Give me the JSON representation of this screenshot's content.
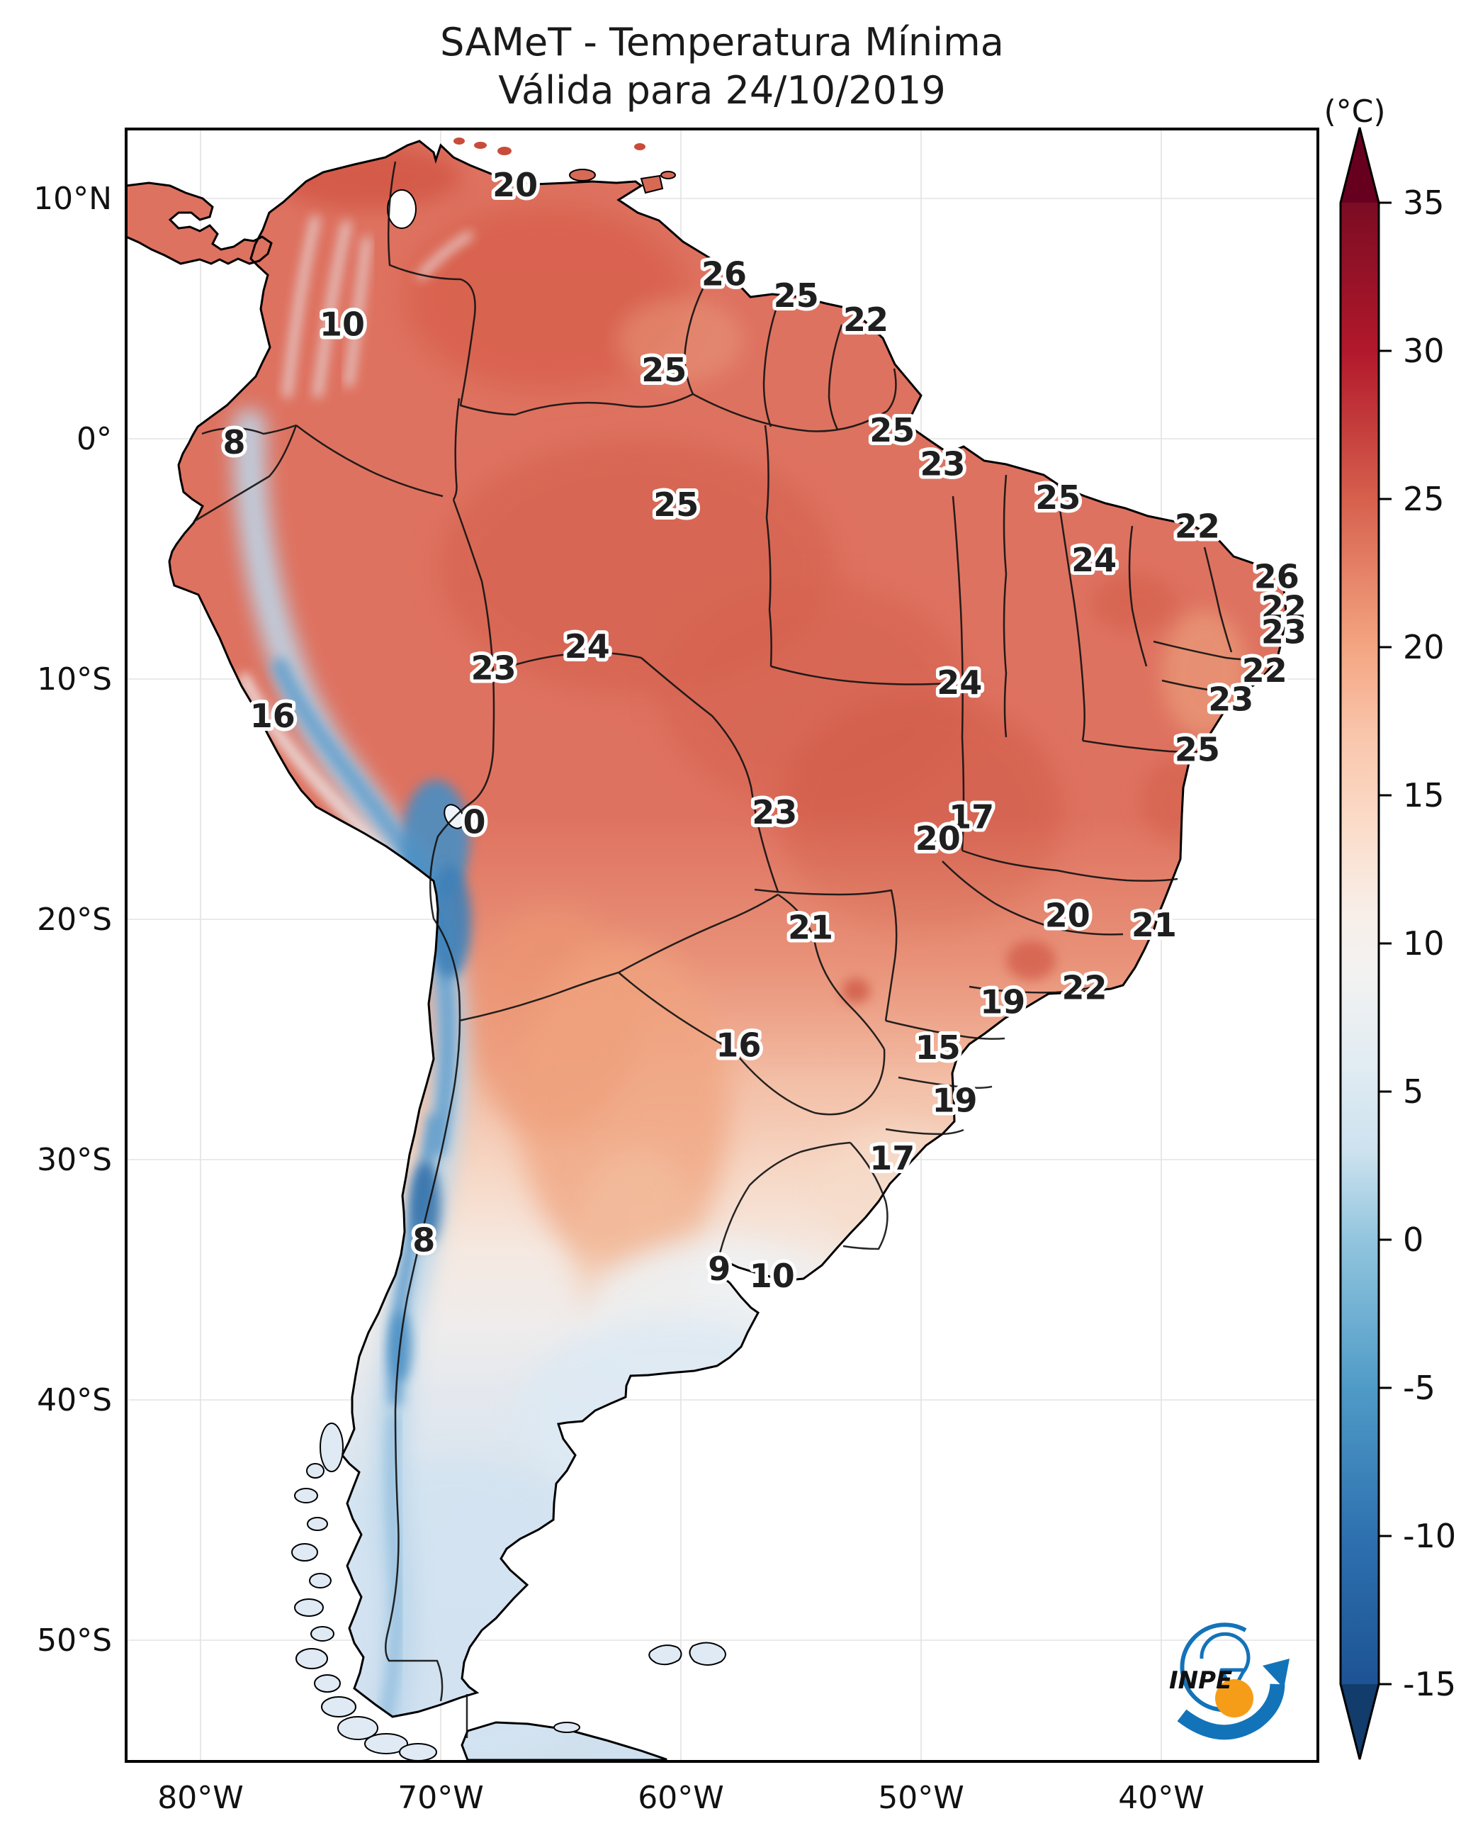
{
  "title": {
    "line1": "SAMeT - Temperatura Mínima",
    "line2": "Válida para 24/10/2019"
  },
  "colorbar": {
    "unit_label": "(°C)",
    "ticks": [
      35,
      30,
      25,
      20,
      15,
      10,
      5,
      0,
      -5,
      -10,
      -15
    ],
    "vmin": -15,
    "vmax": 35,
    "extend_above_color": "#67001f",
    "extend_below_color": "#113c6b"
  },
  "axes": {
    "lat_ticks": [
      {
        "label": "10°N",
        "value": 10
      },
      {
        "label": "0°",
        "value": 0
      },
      {
        "label": "10°S",
        "value": -10
      },
      {
        "label": "20°S",
        "value": -20
      },
      {
        "label": "30°S",
        "value": -30
      },
      {
        "label": "40°S",
        "value": -40
      },
      {
        "label": "50°S",
        "value": -50
      }
    ],
    "lon_ticks": [
      {
        "label": "80°W",
        "value": -80
      },
      {
        "label": "70°W",
        "value": -70
      },
      {
        "label": "60°W",
        "value": -60
      },
      {
        "label": "50°W",
        "value": -50
      },
      {
        "label": "40°W",
        "value": -40
      }
    ]
  },
  "logo": {
    "name": "INPE",
    "blue": "#1373b9",
    "orange": "#f59d18"
  },
  "chart_data": {
    "type": "heatmap",
    "title": "SAMeT - Temperatura Mínima",
    "subtitle": "Válida para 24/10/2019",
    "unit": "°C",
    "region": "South America",
    "lon_range": [
      -83.1,
      -33.5
    ],
    "lat_range": [
      -55.2,
      12.9
    ],
    "colorbar_range": [
      -15,
      35
    ],
    "colorbar_ticks": [
      35,
      30,
      25,
      20,
      15,
      10,
      5,
      0,
      -5,
      -10,
      -15
    ],
    "colormap": "red (warm) to blue (cold), RdBu reversed",
    "station_labels": [
      {
        "value": "20",
        "lon": -66.9,
        "lat": 10.5
      },
      {
        "value": "10",
        "lon": -74.1,
        "lat": 4.7
      },
      {
        "value": "8",
        "lon": -78.6,
        "lat": -0.2
      },
      {
        "value": "26",
        "lon": -58.2,
        "lat": 6.8
      },
      {
        "value": "25",
        "lon": -55.2,
        "lat": 5.9
      },
      {
        "value": "22",
        "lon": -52.3,
        "lat": 4.9
      },
      {
        "value": "25",
        "lon": -60.7,
        "lat": 2.8
      },
      {
        "value": "25",
        "lon": -51.2,
        "lat": 0.3
      },
      {
        "value": "23",
        "lon": -49.1,
        "lat": -1.1
      },
      {
        "value": "25",
        "lon": -44.3,
        "lat": -2.5
      },
      {
        "value": "22",
        "lon": -38.5,
        "lat": -3.7
      },
      {
        "value": "24",
        "lon": -42.8,
        "lat": -5.1
      },
      {
        "value": "26",
        "lon": -35.2,
        "lat": -5.8
      },
      {
        "value": "22",
        "lon": -34.9,
        "lat": -7.1
      },
      {
        "value": "23",
        "lon": -34.9,
        "lat": -8.1
      },
      {
        "value": "22",
        "lon": -35.7,
        "lat": -9.7
      },
      {
        "value": "23",
        "lon": -37.1,
        "lat": -10.9
      },
      {
        "value": "25",
        "lon": -38.5,
        "lat": -13.0
      },
      {
        "value": "25",
        "lon": -60.2,
        "lat": -2.8
      },
      {
        "value": "24",
        "lon": -63.9,
        "lat": -8.7
      },
      {
        "value": "23",
        "lon": -67.8,
        "lat": -9.6
      },
      {
        "value": "24",
        "lon": -48.4,
        "lat": -10.2
      },
      {
        "value": "23",
        "lon": -56.1,
        "lat": -15.6
      },
      {
        "value": "17",
        "lon": -47.9,
        "lat": -15.8
      },
      {
        "value": "20",
        "lon": -49.3,
        "lat": -16.7
      },
      {
        "value": "0",
        "lon": -68.6,
        "lat": -16.0
      },
      {
        "value": "16",
        "lon": -77.0,
        "lat": -11.6
      },
      {
        "value": "21",
        "lon": -54.6,
        "lat": -20.4
      },
      {
        "value": "20",
        "lon": -43.9,
        "lat": -19.9
      },
      {
        "value": "21",
        "lon": -40.3,
        "lat": -20.3
      },
      {
        "value": "22",
        "lon": -43.2,
        "lat": -22.9
      },
      {
        "value": "19",
        "lon": -46.6,
        "lat": -23.5
      },
      {
        "value": "16",
        "lon": -57.6,
        "lat": -25.3
      },
      {
        "value": "15",
        "lon": -49.3,
        "lat": -25.4
      },
      {
        "value": "19",
        "lon": -48.6,
        "lat": -27.6
      },
      {
        "value": "17",
        "lon": -51.2,
        "lat": -30.0
      },
      {
        "value": "8",
        "lon": -70.7,
        "lat": -33.4
      },
      {
        "value": "9",
        "lon": -58.4,
        "lat": -34.6
      },
      {
        "value": "10",
        "lon": -56.2,
        "lat": -34.9
      }
    ]
  }
}
